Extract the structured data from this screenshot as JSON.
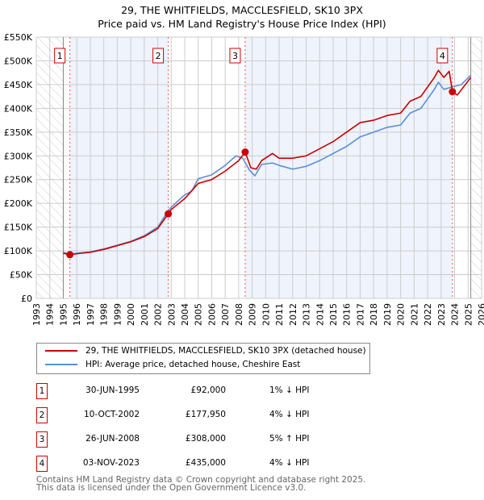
{
  "title_line1": "29, THE WHITFIELDS, MACCLESFIELD, SK10 3PX",
  "title_line2": "Price paid vs. HM Land Registry's House Price Index (HPI)",
  "chart_data": {
    "type": "line",
    "xlim": [
      1993,
      2026
    ],
    "ylim": [
      0,
      550000
    ],
    "yticks": [
      0,
      50000,
      100000,
      150000,
      200000,
      250000,
      300000,
      350000,
      400000,
      450000,
      500000,
      550000
    ],
    "ytick_labels": [
      "£0",
      "£50K",
      "£100K",
      "£150K",
      "£200K",
      "£250K",
      "£300K",
      "£350K",
      "£400K",
      "£450K",
      "£500K",
      "£550K"
    ],
    "xtick_labels": [
      "1993",
      "1994",
      "1995",
      "1996",
      "1997",
      "1998",
      "1999",
      "2000",
      "2001",
      "2002",
      "2003",
      "2004",
      "2005",
      "2006",
      "2007",
      "2008",
      "2009",
      "2010",
      "2011",
      "2012",
      "2013",
      "2014",
      "2015",
      "2016",
      "2017",
      "2018",
      "2019",
      "2020",
      "2021",
      "2022",
      "2023",
      "2024",
      "2025",
      "2026"
    ],
    "grid": true,
    "data_range": [
      1995.0,
      2025.2
    ],
    "series": [
      {
        "name": "29, THE WHITFIELDS, MACCLESFIELD, SK10 3PX (detached house)",
        "color": "#cc0000",
        "x": [
          1995.0,
          1995.5,
          1996,
          1997,
          1998,
          1999,
          2000,
          2001,
          2002,
          2002.78,
          2003,
          2004,
          2005,
          2006,
          2007,
          2008,
          2008.48,
          2008.9,
          2009.3,
          2009.7,
          2010.5,
          2011,
          2012,
          2013,
          2014,
          2015,
          2016,
          2017,
          2018,
          2019,
          2020,
          2020.7,
          2021.5,
          2022.5,
          2022.8,
          2023.2,
          2023.6,
          2023.84,
          2024.2,
          2025.2
        ],
        "y": [
          95000,
          92000,
          94000,
          97000,
          103000,
          111000,
          119000,
          130000,
          147000,
          177950,
          187000,
          210000,
          242000,
          250000,
          268000,
          290000,
          308000,
          275000,
          272000,
          290000,
          305000,
          295000,
          295000,
          300000,
          315000,
          330000,
          350000,
          370000,
          375000,
          385000,
          390000,
          415000,
          425000,
          465000,
          480000,
          465000,
          478000,
          435000,
          428000,
          465000
        ]
      },
      {
        "name": "HPI: Average price, detached house, Cheshire East",
        "color": "#5b8fd6",
        "x": [
          1995.0,
          1995.5,
          1996,
          1997,
          1998,
          1999,
          2000,
          2001,
          2002,
          2002.78,
          2003,
          2004,
          2004.5,
          2005,
          2006,
          2007,
          2007.8,
          2008.3,
          2008.8,
          2009.2,
          2009.7,
          2010.5,
          2011,
          2012,
          2013,
          2014,
          2015,
          2016,
          2017,
          2018,
          2019,
          2020,
          2020.7,
          2021.5,
          2022.5,
          2022.8,
          2023.2,
          2023.8,
          2024.5,
          2025.2
        ],
        "y": [
          97000,
          93000,
          95000,
          98000,
          104000,
          112000,
          120000,
          132000,
          150000,
          185000,
          192000,
          218000,
          225000,
          252000,
          260000,
          280000,
          300000,
          295000,
          270000,
          258000,
          282000,
          285000,
          280000,
          272000,
          278000,
          290000,
          305000,
          320000,
          340000,
          350000,
          360000,
          365000,
          390000,
          400000,
          440000,
          455000,
          440000,
          445000,
          450000,
          470000
        ]
      }
    ],
    "sales": [
      {
        "n": "1",
        "x": 1995.49,
        "y": 92000
      },
      {
        "n": "2",
        "x": 2002.78,
        "y": 177950
      },
      {
        "n": "3",
        "x": 2008.48,
        "y": 308000
      },
      {
        "n": "4",
        "x": 2023.84,
        "y": 435000
      }
    ],
    "shaded_periods": [
      [
        1995.49,
        2002.78
      ],
      [
        2008.48,
        2023.84
      ]
    ]
  },
  "legend": [
    {
      "label": "29, THE WHITFIELDS, MACCLESFIELD, SK10 3PX (detached house)",
      "color": "#cc0000"
    },
    {
      "label": "HPI: Average price, detached house, Cheshire East",
      "color": "#5b8fd6"
    }
  ],
  "transactions": [
    {
      "n": "1",
      "date": "30-JUN-1995",
      "price": "£92,000",
      "hpi": "1% ↓ HPI"
    },
    {
      "n": "2",
      "date": "10-OCT-2002",
      "price": "£177,950",
      "hpi": "4% ↓ HPI"
    },
    {
      "n": "3",
      "date": "26-JUN-2008",
      "price": "£308,000",
      "hpi": "5% ↑ HPI"
    },
    {
      "n": "4",
      "date": "03-NOV-2023",
      "price": "£435,000",
      "hpi": "4% ↓ HPI"
    }
  ],
  "footer_line1": "Contains HM Land Registry data © Crown copyright and database right 2025.",
  "footer_line2": "This data is licensed under the Open Government Licence v3.0."
}
